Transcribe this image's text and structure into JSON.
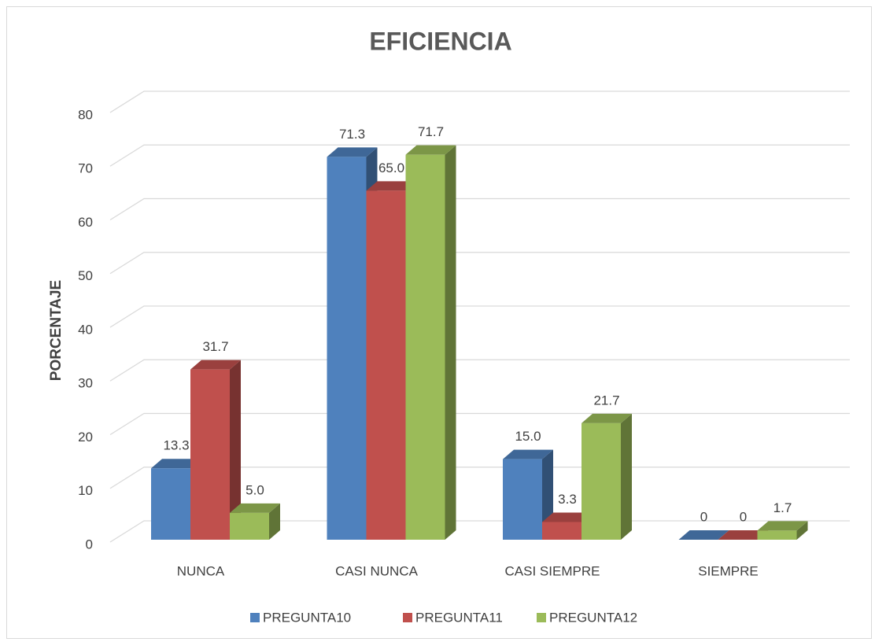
{
  "chart_data": {
    "type": "bar3d",
    "title": "EFICIENCIA",
    "y_label": "PORCENTAJE",
    "categories": [
      "NUNCA",
      "CASI NUNCA",
      "CASI SIEMPRE",
      "SIEMPRE"
    ],
    "series": [
      {
        "name": "PREGUNTA10",
        "color": "#4f81bd",
        "values": [
          13.3,
          71.3,
          15.0,
          0
        ],
        "value_labels": [
          "13.3",
          "71.3",
          "15.0",
          "0"
        ]
      },
      {
        "name": "PREGUNTA11",
        "color": "#c0504d",
        "values": [
          31.7,
          65.0,
          3.3,
          0
        ],
        "value_labels": [
          "31.7",
          "65.0",
          "3.3",
          "0"
        ]
      },
      {
        "name": "PREGUNTA12",
        "color": "#9bbb59",
        "values": [
          5.0,
          71.7,
          21.7,
          1.7
        ],
        "value_labels": [
          "5.0",
          "71.7",
          "21.7",
          "1.7"
        ]
      }
    ],
    "ylim": [
      0,
      80
    ],
    "yticks": [
      0,
      10,
      20,
      30,
      40,
      50,
      60,
      70,
      80
    ],
    "grid": true,
    "legend": "bottom"
  }
}
